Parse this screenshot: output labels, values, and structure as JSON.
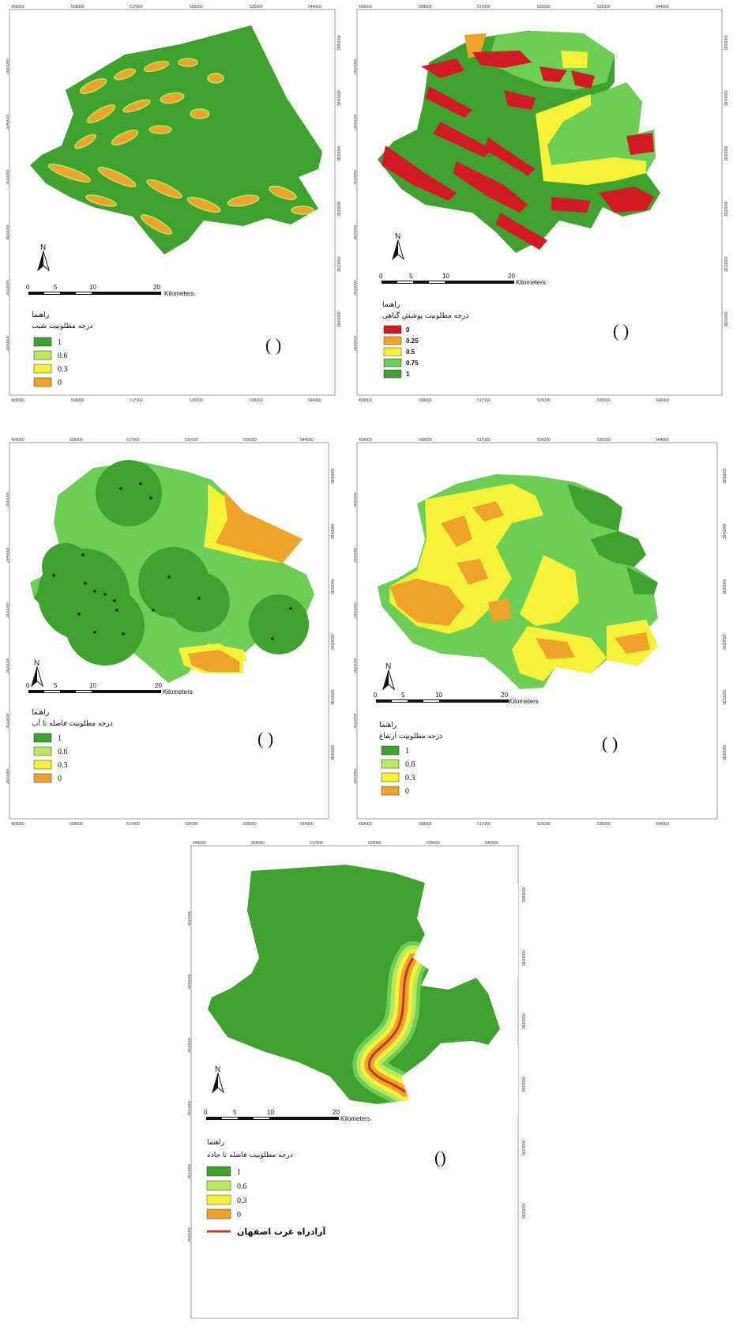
{
  "ticks": {
    "x": [
      "499000",
      "508000",
      "517000",
      "526000",
      "535000",
      "544000"
    ],
    "y": [
      "3650000",
      "3640000",
      "3630000",
      "3620000",
      "3610000",
      "3600000"
    ]
  },
  "scalebar": {
    "n0": "0",
    "n1": "5",
    "n2": "10",
    "n3": "20",
    "unit": "Kilometers"
  },
  "north_label": "N",
  "colors": {
    "dark_green": "#3fa12e",
    "green": "#6dce55",
    "light_green": "#b9e85c",
    "yellow": "#f6f23a",
    "orange": "#f0a32a",
    "red": "#d21a24",
    "road": "#c0392b",
    "frame": "#999999"
  },
  "panels": {
    "slope": {
      "legend_head": "راهنما",
      "legend_title": "درجه مطلوبیت شیب",
      "items": [
        "1",
        "0.6",
        "0.3",
        "0"
      ],
      "paren": "( )"
    },
    "vegetation": {
      "legend_head": "راهنما",
      "legend_title": "درجه مطلوبیت پوشش گیاهی",
      "items": [
        "0",
        "0.25",
        "0.5",
        "0.75",
        "1"
      ],
      "paren": "(   )"
    },
    "water": {
      "legend_head": "راهنما",
      "legend_title": "درجه مطلوبیت فاصله تا آب",
      "items": [
        "1",
        "0.6",
        "0.3",
        "0"
      ],
      "paren": "( )"
    },
    "elevation": {
      "legend_head": "راهنما",
      "legend_title": "درجه مطلوبیت ارتفاع",
      "items": [
        "1",
        "0.6",
        "0.3",
        "0"
      ],
      "paren": "( )"
    },
    "road": {
      "legend_head": "راهنما",
      "legend_title": "درجه مطلوبیت فاصله تا جاده",
      "items": [
        "1",
        "0.6",
        "0.3",
        "0"
      ],
      "road_label": "آزادراه غرب اصفهان",
      "paren": "()"
    }
  }
}
